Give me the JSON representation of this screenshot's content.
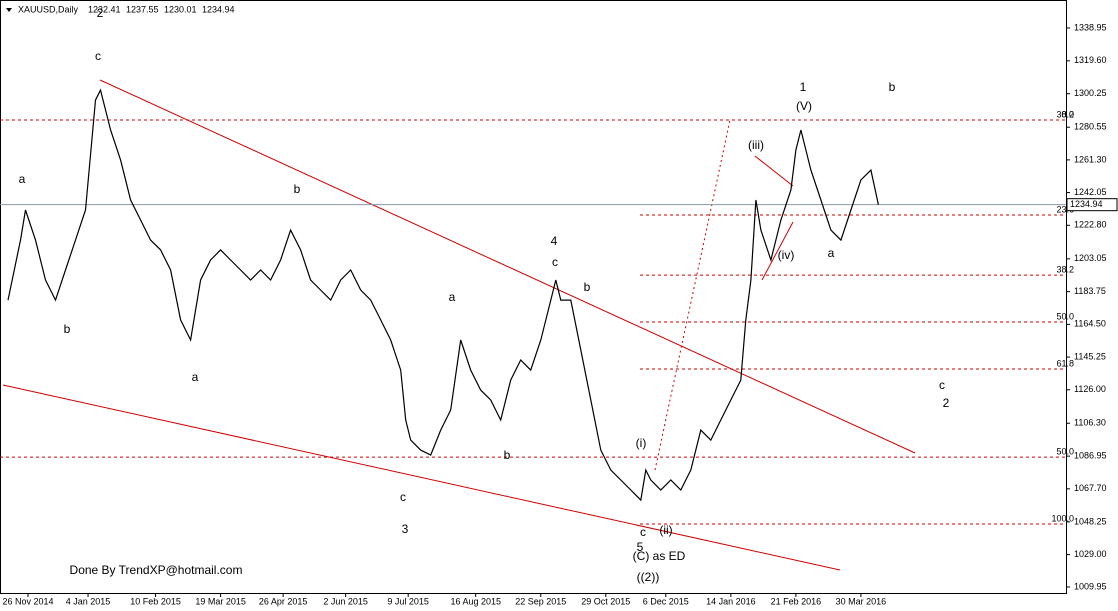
{
  "chart_data": {
    "type": "line",
    "title": "XAUUSD,Daily",
    "ohlc_header": [
      1232.41,
      1237.55,
      1230.01,
      1234.94
    ],
    "last_price": 1234.94,
    "color": "#000000",
    "x": [
      2,
      7,
      9,
      13,
      17,
      21,
      25,
      29,
      33,
      37,
      39,
      43,
      47,
      51,
      55,
      59,
      63,
      67,
      71,
      75,
      79,
      83,
      87,
      91,
      95,
      99,
      103,
      107,
      111,
      115,
      119,
      123,
      127,
      131,
      135,
      139,
      143,
      147,
      151,
      155,
      159,
      161,
      163,
      167,
      171,
      175,
      179,
      183,
      187,
      191,
      195,
      199,
      203,
      207,
      211,
      215,
      219,
      221,
      223,
      227,
      231,
      235,
      239,
      243,
      247,
      251,
      255,
      257,
      259,
      263,
      267,
      271,
      275,
      279,
      283,
      287,
      291,
      295,
      297,
      299,
      301,
      303,
      307,
      311,
      315,
      317,
      319,
      323,
      327,
      331,
      335,
      339,
      343,
      347,
      350
    ],
    "values": [
      1178.8,
      1214.1,
      1231.8,
      1214.1,
      1190.6,
      1178.8,
      1196.5,
      1214.1,
      1231.8,
      1296.5,
      1302.4,
      1278.9,
      1261.2,
      1237.7,
      1225.9,
      1214.1,
      1208.3,
      1196.5,
      1167.1,
      1155.3,
      1190.6,
      1202.4,
      1208.3,
      1202.4,
      1196.5,
      1190.6,
      1196.5,
      1190.6,
      1202.4,
      1220,
      1208.3,
      1190.6,
      1184.7,
      1178.8,
      1190.6,
      1196.5,
      1184.7,
      1178.8,
      1167.1,
      1155.3,
      1137.6,
      1108.2,
      1096.4,
      1090.5,
      1087.6,
      1102.3,
      1114.1,
      1155.3,
      1137.6,
      1125.8,
      1120,
      1108.2,
      1131.7,
      1143.5,
      1137.6,
      1155.3,
      1178.8,
      1190.6,
      1178.8,
      1178.8,
      1149.4,
      1120,
      1090.5,
      1078.8,
      1072.9,
      1067,
      1061.1,
      1078.8,
      1072.9,
      1067,
      1072.9,
      1067,
      1078.8,
      1102.3,
      1096.4,
      1108.2,
      1120,
      1131.7,
      1167.1,
      1190.6,
      1237.7,
      1220,
      1202.4,
      1225.9,
      1243.6,
      1267.1,
      1278.9,
      1255.3,
      1237.7,
      1220,
      1214.1,
      1231.8,
      1249.5,
      1255.3,
      1234.94
    ],
    "xlim": [
      0,
      425
    ],
    "xticks": [
      {
        "value": 10,
        "label": "26 Nov 2014"
      },
      {
        "value": 34,
        "label": "4 Jan 2015"
      },
      {
        "value": 61,
        "label": "10 Feb 2015"
      },
      {
        "value": 87,
        "label": "19 Mar 2015"
      },
      {
        "value": 112,
        "label": "26 Apr 2015"
      },
      {
        "value": 137,
        "label": "2 Jun 2015"
      },
      {
        "value": 162,
        "label": "9 Jul 2015"
      },
      {
        "value": 189,
        "label": "16 Aug 2015"
      },
      {
        "value": 215,
        "label": "22 Sep 2015"
      },
      {
        "value": 241,
        "label": "29 Oct 2015"
      },
      {
        "value": 265,
        "label": "6 Dec 2015"
      },
      {
        "value": 291,
        "label": "14 Jan 2016"
      },
      {
        "value": 317,
        "label": "21 Feb 2016"
      },
      {
        "value": 343,
        "label": "30 Mar 2016"
      }
    ],
    "ylim": [
      1006.4,
      1355.4
    ],
    "yticks": [
      {
        "value": 1009.95,
        "label": "1009.95"
      },
      {
        "value": 1029,
        "label": "1029.00"
      },
      {
        "value": 1048.25,
        "label": "1048.25"
      },
      {
        "value": 1067.7,
        "label": "1067.70"
      },
      {
        "value": 1086.95,
        "label": "1086.95"
      },
      {
        "value": 1106.3,
        "label": "1106.30"
      },
      {
        "value": 1126,
        "label": "1126.00"
      },
      {
        "value": 1145.25,
        "label": "1145.25"
      },
      {
        "value": 1164.5,
        "label": "1164.50"
      },
      {
        "value": 1183.75,
        "label": "1183.75"
      },
      {
        "value": 1203.05,
        "label": "1203.05"
      },
      {
        "value": 1222.8,
        "label": "1222.80"
      },
      {
        "value": 1242.05,
        "label": "1242.05"
      },
      {
        "value": 1261.3,
        "label": "1261.30"
      },
      {
        "value": 1280.55,
        "label": "1280.55"
      },
      {
        "value": 1300.25,
        "label": "1300.25"
      },
      {
        "value": 1319.6,
        "label": "1319.60"
      },
      {
        "value": 1338.95,
        "label": "1338.95"
      }
    ],
    "levels": [
      {
        "label": "38.2",
        "value": 1284.8
      },
      {
        "label": "0.0",
        "value": 1284.8
      },
      {
        "label": "23.6",
        "value": 1228.9
      },
      {
        "label": "38.2",
        "value": 1193.5
      },
      {
        "label": "50.0",
        "value": 1165.9
      },
      {
        "label": "61.8",
        "value": 1138.2
      },
      {
        "label": "50.0",
        "value": 1086.4
      },
      {
        "label": "100.0",
        "value": 1047
      }
    ],
    "level_color": "#d00000",
    "annotations": [
      {
        "text": "2",
        "color": "#d00000"
      },
      {
        "text": "c",
        "color": "#0000cc"
      },
      {
        "text": "a",
        "color": "#0000cc"
      },
      {
        "text": "b",
        "color": "#0000cc"
      },
      {
        "text": "b",
        "color": "#0000cc"
      },
      {
        "text": "a",
        "color": "#0000cc"
      },
      {
        "text": "a",
        "color": "#0000cc"
      },
      {
        "text": "c",
        "color": "#0000cc"
      },
      {
        "text": "3",
        "color": "#d00000"
      },
      {
        "text": "b",
        "color": "#0000cc"
      },
      {
        "text": "4",
        "color": "#d00000"
      },
      {
        "text": "c",
        "color": "#0000cc"
      },
      {
        "text": "b",
        "color": "#0000cc"
      },
      {
        "text": "(i)",
        "color": "#d00000"
      },
      {
        "text": "c",
        "color": "#0000cc"
      },
      {
        "text": "(ii)",
        "color": "#d00000"
      },
      {
        "text": "5",
        "color": "#d00000"
      },
      {
        "text": "(C) as ED",
        "color": "#0000cc"
      },
      {
        "text": "((2))",
        "color": "#229922"
      },
      {
        "text": "(iii)",
        "color": "#d00000"
      },
      {
        "text": "(iv)",
        "color": "#d00000"
      },
      {
        "text": "(V)",
        "color": "#d00000"
      },
      {
        "text": "1",
        "color": "#0000cc"
      },
      {
        "text": "b",
        "color": "#d00000"
      },
      {
        "text": "a",
        "color": "#d00000"
      },
      {
        "text": "c",
        "color": "#d00000"
      },
      {
        "text": "2",
        "color": "#0000cc"
      },
      {
        "text": "Done By TrendXP@hotmail.com",
        "color": "#d00000"
      }
    ]
  }
}
